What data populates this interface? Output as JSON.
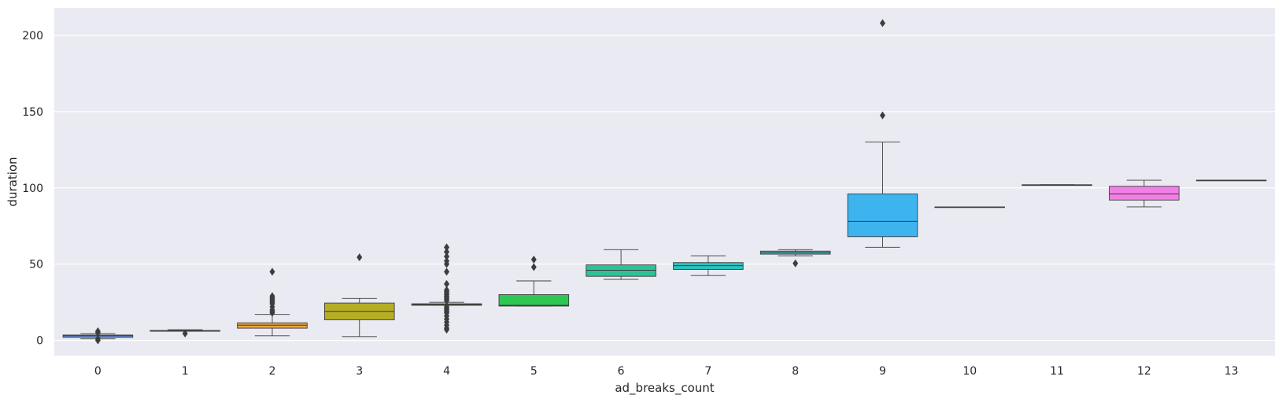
{
  "chart_data": {
    "type": "box",
    "xlabel": "ad_breaks_count",
    "ylabel": "duration",
    "ylim": [
      -10,
      218
    ],
    "yticks": [
      0,
      50,
      100,
      150,
      200
    ],
    "grid": true,
    "background": "#EAEAF2",
    "categories": [
      "0",
      "1",
      "2",
      "3",
      "4",
      "5",
      "6",
      "7",
      "8",
      "9",
      "10",
      "11",
      "12",
      "13"
    ],
    "boxes": [
      {
        "category": "0",
        "whisker_low": 1,
        "q1": 2,
        "median": 3,
        "q3": 3.5,
        "whisker_high": 4.5,
        "outliers": [
          0,
          1,
          5,
          6
        ],
        "color": "#5B8CE0"
      },
      {
        "category": "1",
        "whisker_low": 6,
        "q1": 6,
        "median": 6,
        "q3": 6.5,
        "whisker_high": 7,
        "outliers": [
          4.5
        ],
        "color": "#6B86D6"
      },
      {
        "category": "2",
        "whisker_low": 3,
        "q1": 8,
        "median": 10,
        "q3": 11.5,
        "whisker_high": 17,
        "outliers": [
          18,
          19,
          20,
          22,
          24,
          25,
          26,
          27,
          28,
          29,
          45
        ],
        "color": "#E8A33C"
      },
      {
        "category": "3",
        "whisker_low": 2.5,
        "q1": 13.5,
        "median": 19,
        "q3": 24.5,
        "whisker_high": 27.5,
        "outliers": [
          54.5
        ],
        "color": "#B5AE25"
      },
      {
        "category": "4",
        "whisker_low": 23,
        "q1": 23,
        "median": 23.5,
        "q3": 24,
        "whisker_high": 25,
        "outliers": [
          7,
          8,
          10,
          12,
          14,
          16,
          18,
          19,
          20,
          21,
          22,
          26,
          27,
          28,
          29,
          30,
          31,
          32,
          33,
          37,
          45,
          50,
          52,
          55,
          58,
          61
        ],
        "color": "#8FB23A"
      },
      {
        "category": "5",
        "whisker_low": 22.5,
        "q1": 22.5,
        "median": 23,
        "q3": 30,
        "whisker_high": 39,
        "outliers": [
          48,
          53
        ],
        "color": "#2FC753"
      },
      {
        "category": "6",
        "whisker_low": 40,
        "q1": 42,
        "median": 46,
        "q3": 49.5,
        "whisker_high": 59.5,
        "outliers": [],
        "color": "#2BC29A"
      },
      {
        "category": "7",
        "whisker_low": 42.5,
        "q1": 46.5,
        "median": 49,
        "q3": 51,
        "whisker_high": 55.5,
        "outliers": [],
        "color": "#2BC2BE"
      },
      {
        "category": "8",
        "whisker_low": 55.5,
        "q1": 56.5,
        "median": 57.5,
        "q3": 58.5,
        "whisker_high": 59.5,
        "outliers": [
          50.5
        ],
        "color": "#2CC0D8"
      },
      {
        "category": "9",
        "whisker_low": 61,
        "q1": 68,
        "median": 78,
        "q3": 96,
        "whisker_high": 130,
        "outliers": [
          147.5,
          208
        ],
        "color": "#3DB4EE"
      },
      {
        "category": "10",
        "whisker_low": 87.5,
        "q1": 87.5,
        "median": 87.5,
        "q3": 87.5,
        "whisker_high": 87.5,
        "outliers": [],
        "color": "#8C9BF2"
      },
      {
        "category": "11",
        "whisker_low": 102,
        "q1": 102,
        "median": 102,
        "q3": 102,
        "whisker_high": 102,
        "outliers": [],
        "color": "#C58BF2"
      },
      {
        "category": "12",
        "whisker_low": 87.5,
        "q1": 92,
        "median": 96,
        "q3": 101,
        "whisker_high": 105,
        "outliers": [],
        "color": "#F27FE6"
      },
      {
        "category": "13",
        "whisker_low": 105,
        "q1": 105,
        "median": 105,
        "q3": 105,
        "whisker_high": 105,
        "outliers": [],
        "color": "#F28BB6"
      }
    ]
  }
}
